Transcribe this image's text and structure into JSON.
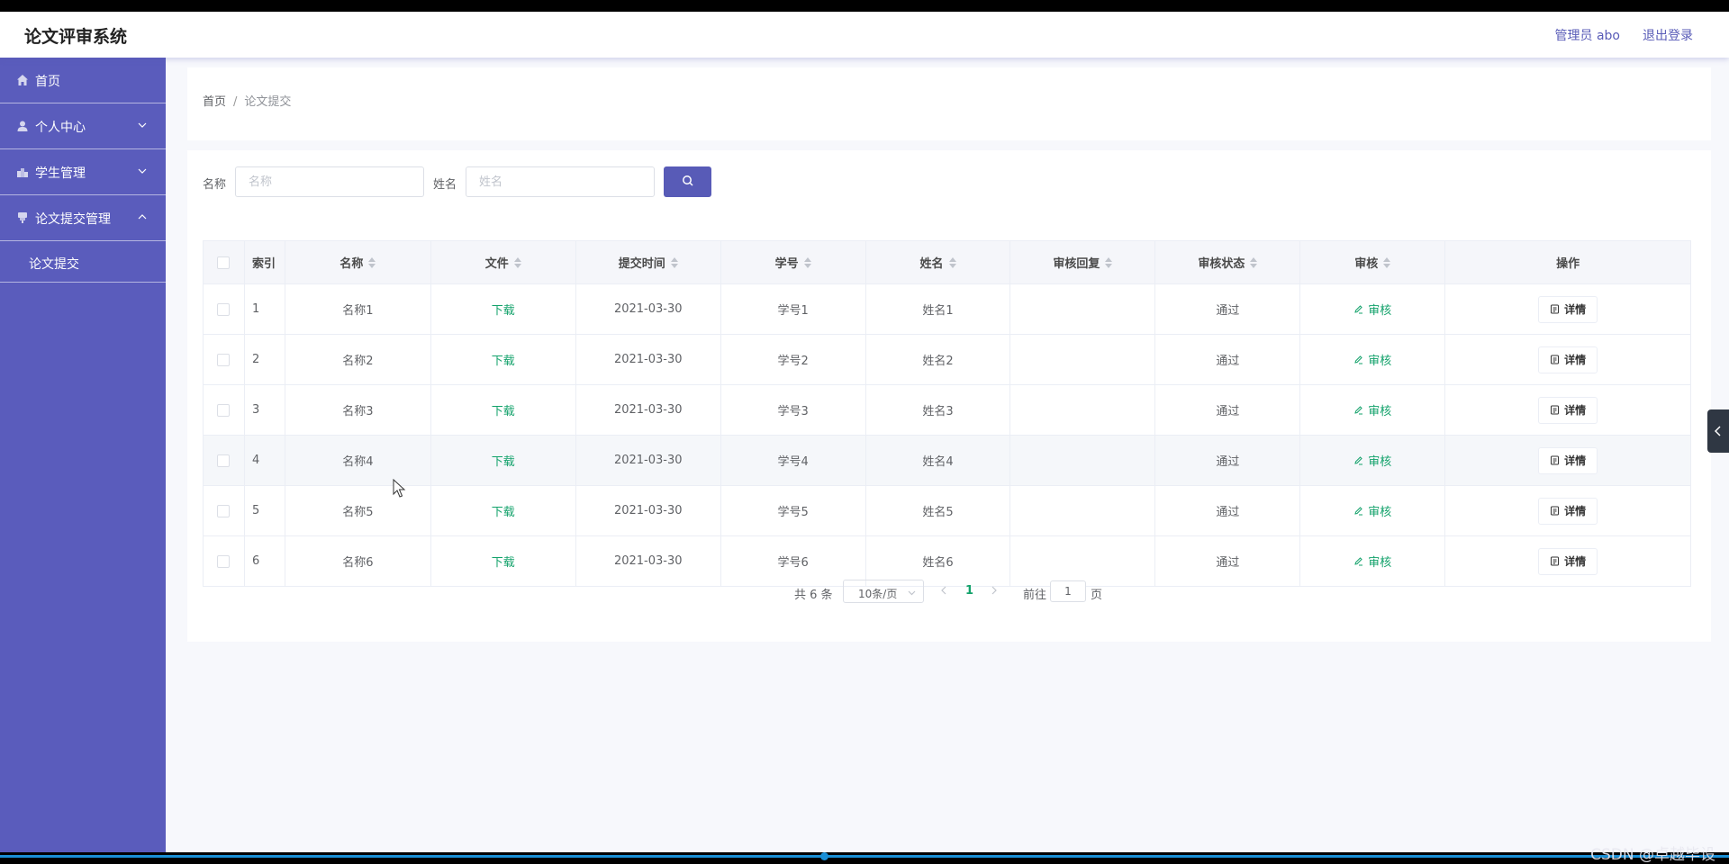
{
  "app": {
    "title": "论文评审系统"
  },
  "header": {
    "admin_label": "管理员 abo",
    "logout_label": "退出登录"
  },
  "sidebar": {
    "items": [
      {
        "label": "首页",
        "icon": "home-icon",
        "expandable": false
      },
      {
        "label": "个人中心",
        "icon": "user-icon",
        "expandable": true,
        "expanded": false
      },
      {
        "label": "学生管理",
        "icon": "students-icon",
        "expandable": true,
        "expanded": false
      },
      {
        "label": "论文提交管理",
        "icon": "paper-icon",
        "expandable": true,
        "expanded": true,
        "children": [
          {
            "label": "论文提交"
          }
        ]
      }
    ]
  },
  "breadcrumb": {
    "home": "首页",
    "separator": "/",
    "current": "论文提交"
  },
  "search": {
    "name_label": "名称",
    "name_placeholder": "名称",
    "person_label": "姓名",
    "person_placeholder": "姓名",
    "button_icon": "search-icon"
  },
  "table": {
    "columns": [
      "索引",
      "名称",
      "文件",
      "提交时间",
      "学号",
      "姓名",
      "审核回复",
      "审核状态",
      "审核",
      "操作"
    ],
    "download_label": "下载",
    "review_label": "审核",
    "detail_label": "详情",
    "rows": [
      {
        "index": "1",
        "name": "名称1",
        "time": "2021-03-30",
        "student_id": "学号1",
        "person": "姓名1",
        "reply": "",
        "status": "通过"
      },
      {
        "index": "2",
        "name": "名称2",
        "time": "2021-03-30",
        "student_id": "学号2",
        "person": "姓名2",
        "reply": "",
        "status": "通过"
      },
      {
        "index": "3",
        "name": "名称3",
        "time": "2021-03-30",
        "student_id": "学号3",
        "person": "姓名3",
        "reply": "",
        "status": "通过"
      },
      {
        "index": "4",
        "name": "名称4",
        "time": "2021-03-30",
        "student_id": "学号4",
        "person": "姓名4",
        "reply": "",
        "status": "通过"
      },
      {
        "index": "5",
        "name": "名称5",
        "time": "2021-03-30",
        "student_id": "学号5",
        "person": "姓名5",
        "reply": "",
        "status": "通过"
      },
      {
        "index": "6",
        "name": "名称6",
        "time": "2021-03-30",
        "student_id": "学号6",
        "person": "姓名6",
        "reply": "",
        "status": "通过"
      }
    ]
  },
  "pagination": {
    "total": "共 6 条",
    "page_size": "10条/页",
    "current_page": "1",
    "goto_label": "前往",
    "goto_value": "1",
    "page_suffix": "页"
  },
  "watermark": "CSDN @卓越毕设",
  "colors": {
    "sidebar": "#5a5cbc",
    "accent": "#585bb7",
    "link_green": "#13a26b",
    "page_bg": "#f7f8fc"
  }
}
